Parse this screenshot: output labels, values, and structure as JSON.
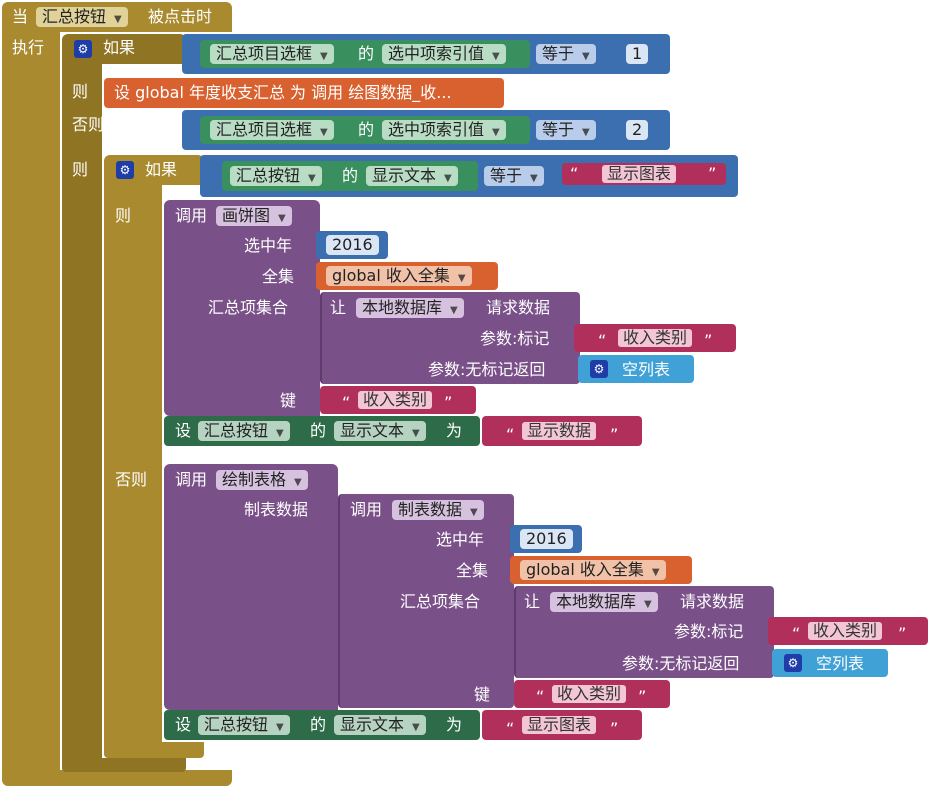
{
  "event": {
    "prefix": "当",
    "component": "汇总按钮",
    "suffix": "被点击时",
    "do": "执行"
  },
  "if1": {
    "if": "如果",
    "comp": "汇总项目选框",
    "of": "的",
    "prop": "选中项索引值",
    "op": "等于",
    "num": "1"
  },
  "then1": {
    "then": "则",
    "set_text": "设 global 年度收支汇总 为 调用 绘图数据_收..."
  },
  "elseif": {
    "label": "否则，如果",
    "comp": "汇总项目选框",
    "of": "的",
    "prop": "选中项索引值",
    "op": "等于",
    "num": "2"
  },
  "then2": {
    "then": "则"
  },
  "if2": {
    "if": "如果",
    "comp": "汇总按钮",
    "of": "的",
    "prop": "显示文本",
    "op": "等于",
    "str": "显示图表"
  },
  "then3": {
    "then": "则"
  },
  "pie": {
    "call": "调用",
    "proc": "画饼图",
    "year_label": "选中年",
    "year": "2016",
    "all_label": "全集",
    "all_var": "global 收入全集",
    "set_label": "汇总项集合",
    "let": "让",
    "db": "本地数据库",
    "req": "请求数据",
    "tag_label": "参数:标记",
    "tag": "收入类别",
    "notag_label": "参数:无标记返回",
    "empty": "空列表",
    "key_label": "键",
    "key": "收入类别"
  },
  "set1": {
    "set": "设",
    "comp": "汇总按钮",
    "of": "的",
    "prop": "显示文本",
    "to": "为",
    "str": "显示数据"
  },
  "else": {
    "label": "否则"
  },
  "table": {
    "call": "调用",
    "proc": "绘制表格",
    "data_label": "制表数据",
    "call2": "调用",
    "proc2": "制表数据",
    "year_label": "选中年",
    "year": "2016",
    "all_label": "全集",
    "all_var": "global 收入全集",
    "set_label": "汇总项集合",
    "let": "让",
    "db": "本地数据库",
    "req": "请求数据",
    "tag_label": "参数:标记",
    "tag": "收入类别",
    "notag_label": "参数:无标记返回",
    "empty": "空列表",
    "key_label": "键",
    "key": "收入类别"
  },
  "set2": {
    "set": "设",
    "comp": "汇总按钮",
    "of": "的",
    "prop": "显示文本",
    "to": "为",
    "str": "显示图表"
  },
  "icons": {
    "mutator": "gear-icon",
    "dropdown": "dropdown-arrow-icon",
    "quote": "“ ”"
  }
}
